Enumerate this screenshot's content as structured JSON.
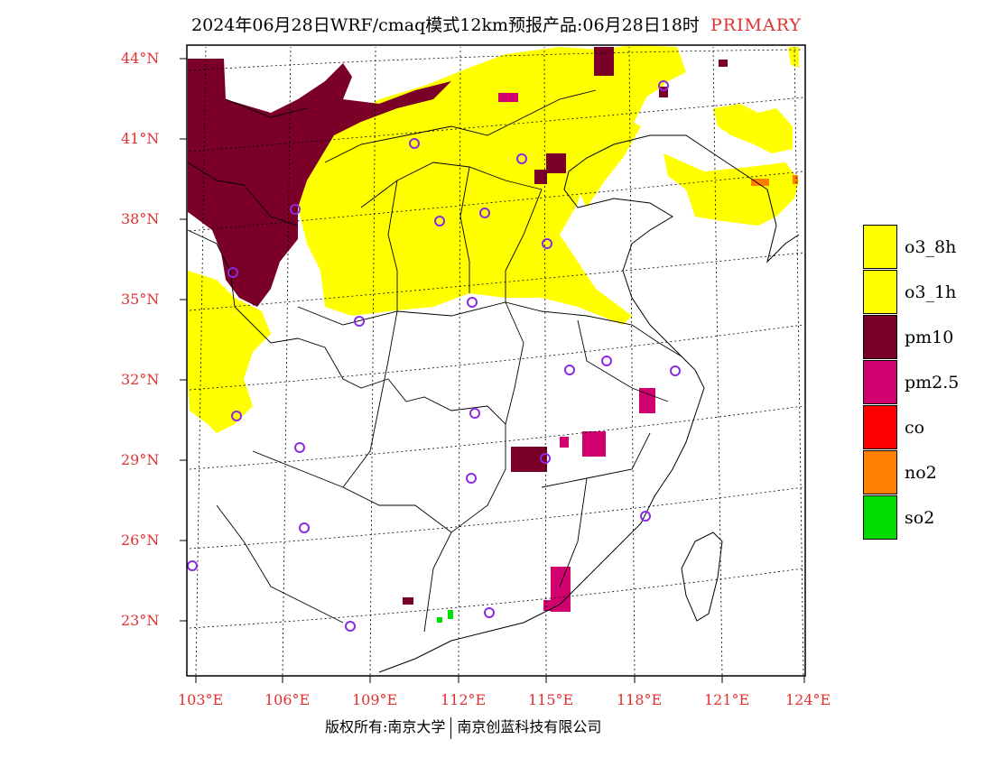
{
  "title": {
    "main": "2024年06月28日WRF/cmaq模式12km预报产品:06月28日18时",
    "tag": "PRIMARY"
  },
  "axes": {
    "lat_labels": [
      "44°N",
      "41°N",
      "38°N",
      "35°N",
      "32°N",
      "29°N",
      "26°N",
      "23°N"
    ],
    "lon_labels": [
      "103°E",
      "106°E",
      "109°E",
      "112°E",
      "115°E",
      "118°E",
      "121°E",
      "124°E"
    ]
  },
  "legend": [
    {
      "label": "o3_8h",
      "color": "#ffff00"
    },
    {
      "label": "o3_1h",
      "color": "#ffff00"
    },
    {
      "label": "pm10",
      "color": "#7a0028"
    },
    {
      "label": "pm2.5",
      "color": "#d1006f"
    },
    {
      "label": "co",
      "color": "#ff0000"
    },
    {
      "label": "no2",
      "color": "#ff8000"
    },
    {
      "label": "so2",
      "color": "#00dd00"
    }
  ],
  "footer": {
    "left": "版权所有:南京大学",
    "right": "南京创蓝科技有限公司"
  },
  "colors": {
    "axis_label": "#e03030",
    "station_marker": "#8a2be2"
  }
}
